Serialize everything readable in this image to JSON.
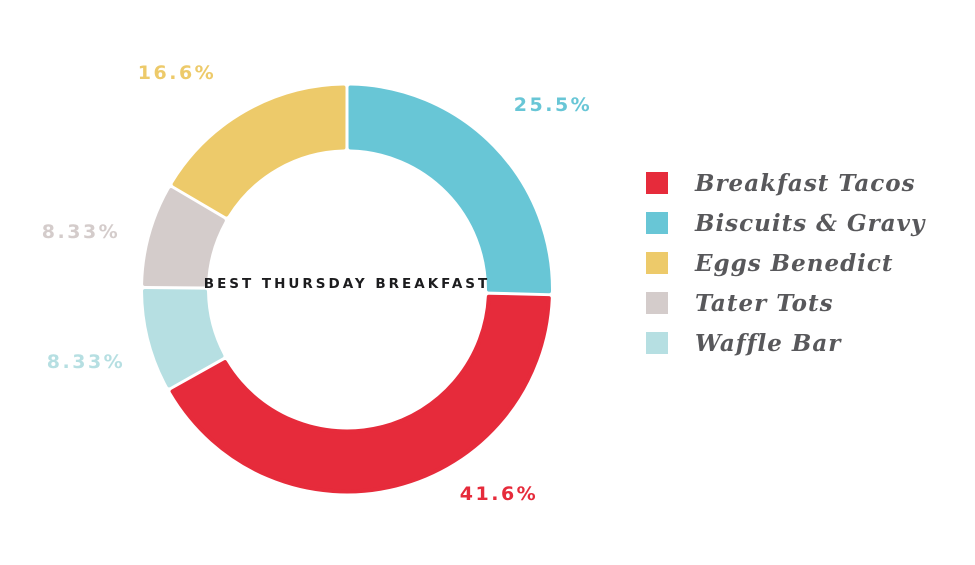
{
  "chart_data": {
    "type": "pie",
    "donut": true,
    "title": "BEST THURSDAY BREAKFAST",
    "legend_position": "right",
    "grid": false,
    "segments_clockwise_from_top": [
      {
        "label": "Biscuits & Gravy",
        "value": 25.5,
        "display": "25.5%",
        "color": "#68C6D6"
      },
      {
        "label": "Breakfast Tacos",
        "value": 41.6,
        "display": "41.6%",
        "color": "#E62B3B"
      },
      {
        "label": "Waffle Bar",
        "value": 8.33,
        "display": "8.33%",
        "color": "#B6DFE2"
      },
      {
        "label": "Tater Tots",
        "value": 8.33,
        "display": "8.33%",
        "color": "#D4CCCB"
      },
      {
        "label": "Eggs Benedict",
        "value": 16.6,
        "display": "16.6%",
        "color": "#EDCA6A"
      }
    ],
    "legend_order": [
      "Breakfast Tacos",
      "Biscuits & Gravy",
      "Eggs Benedict",
      "Tater Tots",
      "Waffle Bar"
    ]
  },
  "colors": {
    "background": "#FFFFFF",
    "title_text": "#1C1C1E",
    "legend_text": "#58585B"
  }
}
